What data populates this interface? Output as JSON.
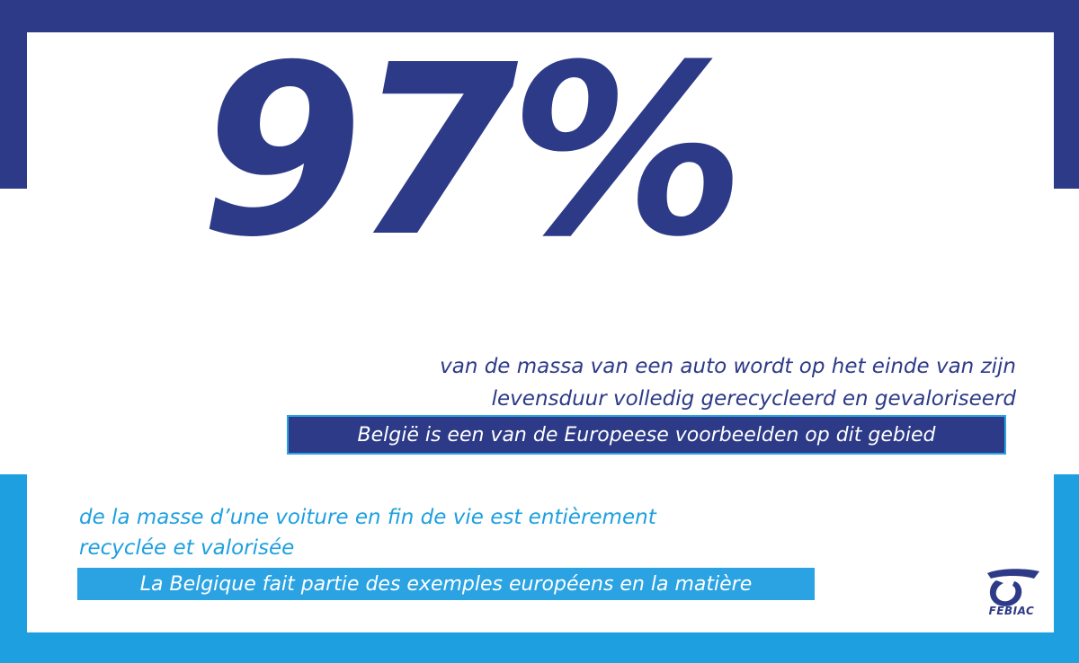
{
  "colors": {
    "navy": "#2d3a87",
    "light_blue": "#1d9fe0",
    "highlight_blue": "#2ba3e2",
    "white": "#ffffff"
  },
  "headline": {
    "value": "97%"
  },
  "dutch": {
    "line1": "van de massa van een auto wordt op het einde van zijn",
    "line2": "levensduur volledig gerecycleerd en gevaloriseerd",
    "highlight": "België is een van de Europeese voorbeelden op dit gebied"
  },
  "french": {
    "line1": "de la masse d’une voiture en fin de vie est entièrement",
    "line2": "recyclée et valorisée",
    "highlight": "La Belgique fait partie des exemples européens en la matière"
  },
  "logo": {
    "icon": "febiac-logo-icon",
    "text": "FEBIAC"
  }
}
